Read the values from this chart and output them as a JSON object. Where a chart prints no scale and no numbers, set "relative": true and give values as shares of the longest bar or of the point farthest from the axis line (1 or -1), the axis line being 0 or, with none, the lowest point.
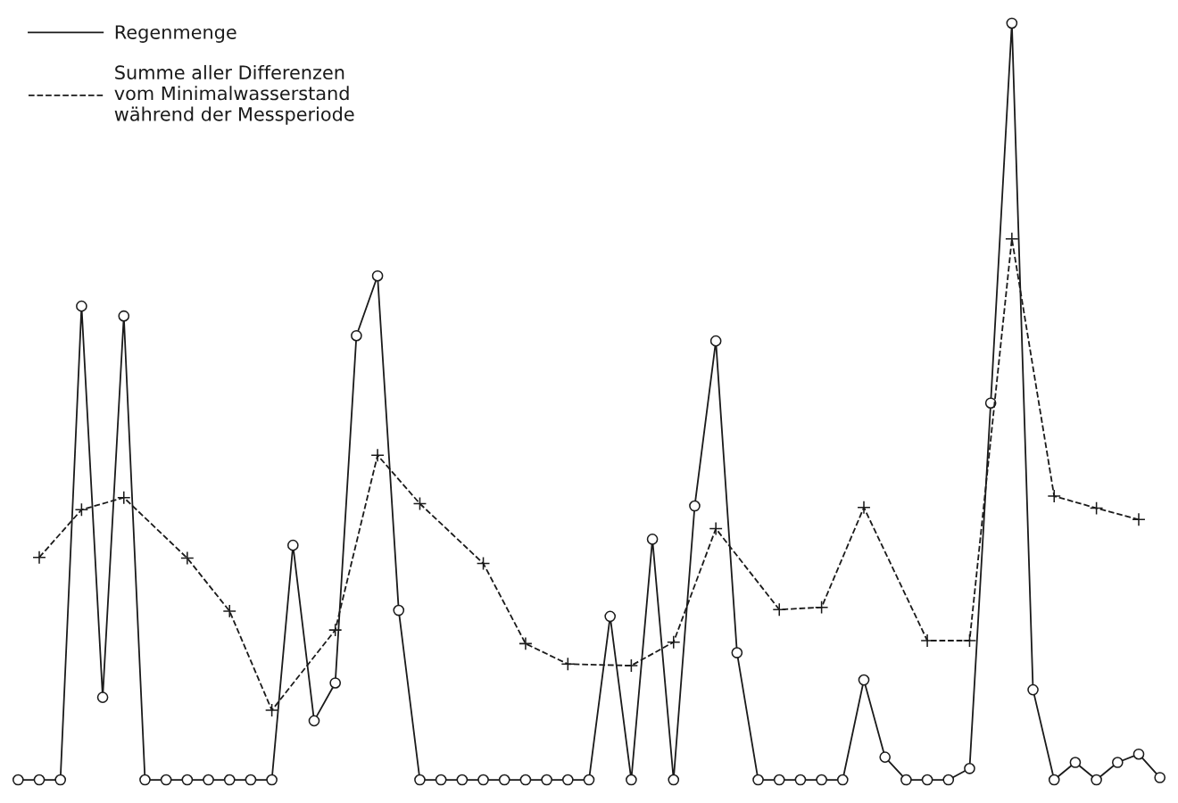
{
  "chart_data": {
    "type": "line",
    "relative": true,
    "legend": "top left",
    "tick_labels": false,
    "categories": [
      null,
      null,
      null,
      null,
      null,
      null,
      null,
      null,
      null,
      null,
      null,
      null,
      null,
      null,
      null,
      null,
      null,
      null,
      null,
      null,
      null,
      null,
      null,
      null,
      null,
      null,
      null,
      null,
      null,
      null,
      null,
      null,
      null,
      null,
      null,
      null,
      null,
      null,
      null,
      null,
      null,
      null,
      null,
      null,
      null,
      null,
      null,
      null,
      null,
      null,
      null,
      null,
      null,
      null,
      null
    ],
    "series": [
      {
        "name": "Regenmenge",
        "color": "#1a1a1a",
        "marker": "circle",
        "line_style": "solid",
        "values": [
          0,
          0,
          0,
          0.626,
          0.109,
          0.613,
          0,
          0,
          0,
          0,
          0,
          0,
          0,
          0.31,
          0.078,
          0.128,
          0.587,
          0.666,
          0.224,
          0,
          0,
          0,
          0,
          0,
          0,
          0,
          0,
          0,
          0.216,
          0,
          0.318,
          0,
          0.362,
          0.58,
          0.168,
          0,
          0,
          0,
          0,
          0,
          0.132,
          0.03,
          0,
          0,
          0,
          0.015,
          0.498,
          1,
          0.119,
          0,
          0.023,
          0,
          0.023,
          0.034,
          0.003
        ]
      },
      {
        "name": "Summe aller Differenzen\nvom Minimalwasserstand\nwährend der Messperiode",
        "color": "#1a1a1a",
        "marker": "cross",
        "line_style": "dashed",
        "values": [
          null,
          0.294,
          null,
          0.357,
          null,
          0.373,
          null,
          null,
          0.293,
          null,
          0.223,
          null,
          0.092,
          null,
          null,
          0.198,
          null,
          0.429,
          null,
          0.365,
          null,
          null,
          0.286,
          null,
          0.18,
          null,
          0.153,
          null,
          null,
          0.151,
          null,
          0.182,
          null,
          0.332,
          null,
          null,
          0.225,
          null,
          0.228,
          null,
          0.36,
          null,
          null,
          0.184,
          null,
          0.184,
          null,
          0.715,
          null,
          0.375,
          null,
          0.359,
          null,
          0.344,
          null
        ]
      }
    ]
  }
}
